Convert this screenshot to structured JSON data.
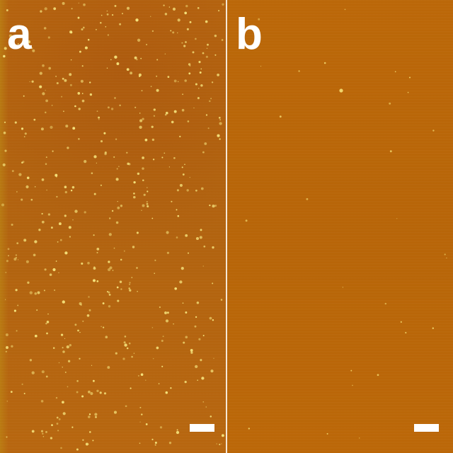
{
  "panels": [
    {
      "label": "a",
      "description_colors": {
        "base": "#b7660f",
        "particle": "#f5e27a"
      }
    },
    {
      "label": "b",
      "description_colors": {
        "base": "#bb6708",
        "particle": "#f1d468"
      }
    }
  ]
}
